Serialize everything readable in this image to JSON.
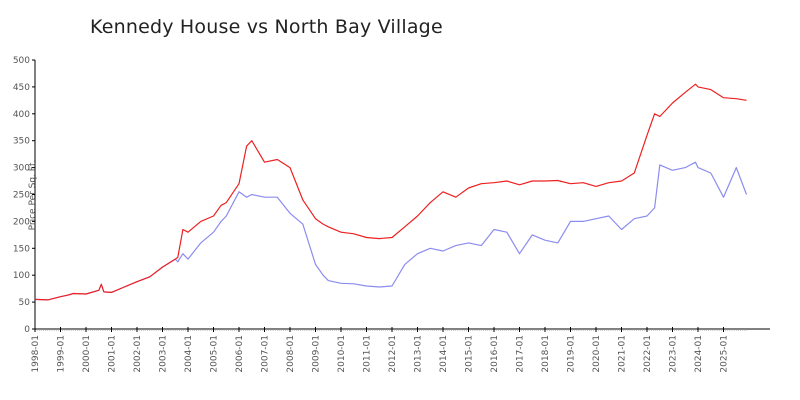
{
  "chart_data": {
    "type": "line",
    "title": "Kennedy House vs North Bay Village",
    "xlabel": "",
    "ylabel": "Price Per Sq. Ft.",
    "ylim": [
      0,
      500
    ],
    "yticks": [
      0,
      50,
      100,
      150,
      200,
      250,
      300,
      350,
      400,
      450,
      500
    ],
    "xticks": [
      "1998-01",
      "1999-01",
      "2000-01",
      "2001-01",
      "2002-01",
      "2003-01",
      "2004-01",
      "2005-01",
      "2006-01",
      "2007-01",
      "2008-01",
      "2009-01",
      "2010-01",
      "2011-01",
      "2012-01",
      "2013-01",
      "2014-01",
      "2015-01",
      "2016-01",
      "2017-01",
      "2018-01",
      "2019-01",
      "2020-01",
      "2021-01",
      "2022-01",
      "2023-01",
      "2024-01",
      "2025-01"
    ],
    "grid": false,
    "legend": "none",
    "x": [
      1998.0,
      1998.5,
      1999.0,
      1999.3,
      1999.5,
      2000.0,
      2000.5,
      2000.6,
      2000.7,
      2001.0,
      2001.5,
      2002.0,
      2002.5,
      2003.0,
      2003.5,
      2003.6,
      2003.8,
      2004.0,
      2004.5,
      2005.0,
      2005.3,
      2005.5,
      2006.0,
      2006.3,
      2006.5,
      2007.0,
      2007.5,
      2008.0,
      2008.5,
      2009.0,
      2009.3,
      2009.5,
      2010.0,
      2010.5,
      2011.0,
      2011.5,
      2012.0,
      2012.5,
      2013.0,
      2013.5,
      2014.0,
      2014.5,
      2015.0,
      2015.5,
      2016.0,
      2016.5,
      2017.0,
      2017.5,
      2018.0,
      2018.5,
      2019.0,
      2019.5,
      2020.0,
      2020.5,
      2021.0,
      2021.5,
      2022.0,
      2022.3,
      2022.5,
      2023.0,
      2023.5,
      2023.9,
      2024.0,
      2024.5,
      2025.0,
      2025.5,
      2025.9
    ],
    "series": [
      {
        "name": "Kennedy House",
        "color": "#ee2020",
        "values": [
          55,
          54,
          60,
          63,
          66,
          65,
          72,
          83,
          69,
          68,
          78,
          88,
          97,
          115,
          130,
          133,
          185,
          180,
          200,
          210,
          230,
          235,
          270,
          340,
          350,
          310,
          315,
          300,
          240,
          205,
          195,
          190,
          180,
          177,
          170,
          168,
          170,
          190,
          210,
          235,
          255,
          245,
          262,
          270,
          272,
          275,
          268,
          275,
          275,
          276,
          270,
          272,
          265,
          272,
          275,
          290,
          360,
          400,
          395,
          420,
          440,
          455,
          450,
          445,
          430,
          428,
          425
        ]
      },
      {
        "name": "North Bay Village",
        "color": "#8c8cf0",
        "values": [
          55,
          54,
          60,
          63,
          66,
          65,
          72,
          83,
          69,
          68,
          78,
          88,
          97,
          115,
          130,
          125,
          140,
          130,
          160,
          180,
          200,
          210,
          255,
          245,
          250,
          245,
          245,
          215,
          195,
          120,
          100,
          90,
          85,
          84,
          80,
          78,
          80,
          120,
          140,
          150,
          145,
          155,
          160,
          155,
          185,
          180,
          140,
          175,
          165,
          160,
          200,
          200,
          205,
          210,
          185,
          205,
          210,
          225,
          305,
          295,
          300,
          310,
          300,
          290,
          245,
          300,
          250
        ]
      }
    ]
  }
}
